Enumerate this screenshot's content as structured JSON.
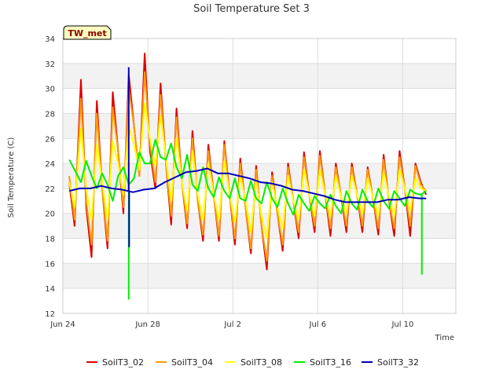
{
  "chart_data": {
    "type": "line",
    "title": "Soil Temperature Set 3",
    "xlabel": "Time",
    "ylabel": "Soil Temperature (C)",
    "badge": "TW_met",
    "ylim": [
      12,
      34
    ],
    "yticks": [
      12,
      14,
      16,
      18,
      20,
      22,
      24,
      26,
      28,
      30,
      32,
      34
    ],
    "xlim": [
      0,
      18.5
    ],
    "xticks": [
      {
        "value": 0,
        "label": "Jun 24"
      },
      {
        "value": 4,
        "label": "Jun 28"
      },
      {
        "value": 8,
        "label": "Jul 2"
      },
      {
        "value": 12,
        "label": "Jul 6"
      },
      {
        "value": 16,
        "label": "Jul 10"
      }
    ],
    "grid": true,
    "legend_position": "bottom",
    "x_unit": "days since Jun 24",
    "series": [
      {
        "name": "SoilT3_02",
        "color": "#dd0000",
        "x": [
          0.3,
          0.55,
          0.85,
          1.1,
          1.35,
          1.6,
          1.85,
          2.1,
          2.35,
          2.6,
          2.85,
          3.1,
          3.35,
          3.6,
          3.85,
          4.1,
          4.35,
          4.6,
          4.85,
          5.1,
          5.35,
          5.6,
          5.85,
          6.1,
          6.35,
          6.6,
          6.85,
          7.1,
          7.35,
          7.6,
          7.85,
          8.1,
          8.35,
          8.6,
          8.85,
          9.1,
          9.35,
          9.6,
          9.85,
          10.1,
          10.35,
          10.6,
          10.85,
          11.1,
          11.35,
          11.6,
          11.85,
          12.1,
          12.35,
          12.6,
          12.85,
          13.1,
          13.35,
          13.6,
          13.85,
          14.1,
          14.35,
          14.6,
          14.85,
          15.1,
          15.35,
          15.6,
          15.85,
          16.1,
          16.35,
          16.6,
          16.85,
          17.1
        ],
        "y": [
          22.5,
          19.0,
          30.7,
          20.5,
          16.5,
          29.0,
          22.0,
          17.2,
          29.7,
          25.0,
          20.0,
          31.1,
          27.0,
          23.0,
          32.8,
          25.0,
          22.0,
          30.4,
          24.0,
          19.1,
          28.4,
          22.5,
          18.8,
          26.6,
          21.0,
          17.8,
          25.5,
          21.5,
          17.8,
          25.8,
          21.5,
          17.5,
          24.4,
          20.5,
          16.8,
          23.8,
          19.0,
          15.5,
          23.3,
          20.0,
          17.0,
          24.0,
          21.0,
          18.0,
          24.9,
          21.5,
          18.5,
          25.0,
          21.5,
          18.2,
          24.0,
          21.3,
          18.5,
          24.0,
          21.5,
          18.5,
          23.7,
          21.2,
          18.3,
          24.7,
          21.0,
          18.2,
          25.0,
          22.0,
          18.2,
          24.0,
          22.5,
          21.5
        ],
        "spikes": []
      },
      {
        "name": "SoilT3_04",
        "color": "#ff9900",
        "x": [
          0.3,
          0.55,
          0.85,
          1.1,
          1.35,
          1.6,
          1.85,
          2.1,
          2.35,
          2.6,
          2.85,
          3.1,
          3.35,
          3.6,
          3.85,
          4.1,
          4.35,
          4.6,
          4.85,
          5.1,
          5.35,
          5.6,
          5.85,
          6.1,
          6.35,
          6.6,
          6.85,
          7.1,
          7.35,
          7.6,
          7.85,
          8.1,
          8.35,
          8.6,
          8.85,
          9.1,
          9.35,
          9.6,
          9.85,
          10.1,
          10.35,
          10.6,
          10.85,
          11.1,
          11.35,
          11.6,
          11.85,
          12.1,
          12.35,
          12.6,
          12.85,
          13.1,
          13.35,
          13.6,
          13.85,
          14.1,
          14.35,
          14.6,
          14.85,
          15.1,
          15.35,
          15.6,
          15.85,
          16.1,
          16.35,
          16.6,
          16.85,
          17.1
        ],
        "y": [
          23.0,
          19.5,
          29.2,
          21.0,
          17.5,
          28.0,
          22.0,
          17.8,
          28.5,
          25.0,
          20.5,
          30.0,
          27.0,
          23.0,
          31.3,
          25.5,
          22.5,
          29.5,
          24.0,
          19.8,
          27.7,
          22.5,
          19.2,
          26.0,
          21.0,
          18.3,
          25.0,
          21.5,
          18.2,
          25.5,
          21.5,
          18.0,
          24.0,
          20.5,
          17.2,
          23.5,
          19.0,
          16.2,
          23.0,
          20.0,
          17.5,
          23.7,
          21.0,
          18.5,
          24.5,
          21.5,
          19.0,
          24.6,
          21.5,
          18.8,
          23.7,
          21.3,
          19.0,
          23.7,
          21.5,
          19.0,
          23.5,
          21.2,
          18.8,
          24.3,
          21.0,
          18.8,
          24.5,
          22.0,
          19.0,
          23.8,
          22.3,
          21.8
        ],
        "spikes": []
      },
      {
        "name": "SoilT3_08",
        "color": "#ffff00",
        "x": [
          0.3,
          0.55,
          0.85,
          1.1,
          1.35,
          1.6,
          1.85,
          2.1,
          2.35,
          2.6,
          2.85,
          3.1,
          3.35,
          3.6,
          3.85,
          4.1,
          4.35,
          4.6,
          4.85,
          5.1,
          5.35,
          5.6,
          5.85,
          6.1,
          6.35,
          6.6,
          6.85,
          7.1,
          7.35,
          7.6,
          7.85,
          8.1,
          8.35,
          8.6,
          8.85,
          9.1,
          9.35,
          9.6,
          9.85,
          10.1,
          10.35,
          10.6,
          10.85,
          11.1,
          11.35,
          11.6,
          11.85,
          12.1,
          12.35,
          12.6,
          12.85,
          13.1,
          13.35,
          13.6,
          13.85,
          14.1,
          14.35,
          14.6,
          14.85,
          15.1,
          15.35,
          15.6,
          15.85,
          16.1,
          16.35,
          16.6,
          16.85,
          17.1
        ],
        "y": [
          22.5,
          20.5,
          26.8,
          22.0,
          19.5,
          25.5,
          22.5,
          19.5,
          25.8,
          24.0,
          21.5,
          27.0,
          25.5,
          23.5,
          28.8,
          26.0,
          23.8,
          27.8,
          24.5,
          21.0,
          26.0,
          22.5,
          20.2,
          25.0,
          21.5,
          19.5,
          24.0,
          21.5,
          19.5,
          24.2,
          21.5,
          19.3,
          23.0,
          21.0,
          18.5,
          22.7,
          19.8,
          18.0,
          22.5,
          20.5,
          18.8,
          23.0,
          21.0,
          19.5,
          23.5,
          21.5,
          19.8,
          23.5,
          21.5,
          19.8,
          23.0,
          21.3,
          20.0,
          23.0,
          21.5,
          20.0,
          22.8,
          21.3,
          19.8,
          23.3,
          21.3,
          19.8,
          23.5,
          22.0,
          20.2,
          22.8,
          22.0,
          21.8
        ],
        "spikes": []
      },
      {
        "name": "SoilT3_16",
        "color": "#00ee00",
        "x": [
          0.3,
          0.55,
          0.85,
          1.1,
          1.35,
          1.6,
          1.85,
          2.1,
          2.35,
          2.6,
          2.85,
          3.1,
          3.35,
          3.6,
          3.85,
          4.1,
          4.35,
          4.6,
          4.85,
          5.1,
          5.35,
          5.6,
          5.85,
          6.1,
          6.35,
          6.6,
          6.85,
          7.1,
          7.35,
          7.6,
          7.85,
          8.1,
          8.35,
          8.6,
          8.85,
          9.1,
          9.35,
          9.6,
          9.85,
          10.1,
          10.35,
          10.6,
          10.85,
          11.1,
          11.35,
          11.6,
          11.85,
          12.1,
          12.35,
          12.6,
          12.85,
          13.1,
          13.35,
          13.6,
          13.85,
          14.1,
          14.35,
          14.6,
          14.85,
          15.1,
          15.35,
          15.6,
          15.85,
          16.1,
          16.35,
          16.6,
          16.85,
          17.1
        ],
        "y": [
          24.3,
          23.5,
          22.5,
          24.2,
          23.0,
          22.0,
          23.2,
          22.3,
          21.0,
          23.0,
          23.7,
          22.3,
          22.8,
          24.9,
          24.0,
          24.0,
          25.9,
          24.5,
          24.3,
          25.6,
          23.7,
          22.8,
          24.7,
          22.3,
          21.8,
          23.7,
          22.0,
          21.3,
          22.9,
          21.8,
          21.2,
          22.8,
          21.2,
          21.0,
          22.6,
          21.2,
          20.8,
          22.5,
          21.2,
          20.5,
          22.0,
          20.8,
          19.9,
          21.5,
          20.8,
          20.2,
          21.4,
          20.8,
          20.4,
          21.5,
          20.6,
          20.0,
          21.8,
          20.8,
          20.3,
          21.9,
          21.0,
          20.5,
          22.0,
          21.0,
          20.4,
          21.8,
          21.2,
          20.6,
          21.9,
          21.6,
          21.5,
          21.8
        ],
        "spikes": [
          {
            "x": 3.1,
            "y_from": 22.3,
            "y_to": 13.1
          },
          {
            "x": 16.9,
            "y_from": 21.5,
            "y_to": 15.1
          }
        ]
      },
      {
        "name": "SoilT3_32",
        "color": "#0000bb",
        "x": [
          0.3,
          0.8,
          1.3,
          1.8,
          2.3,
          2.8,
          3.3,
          3.8,
          4.3,
          4.8,
          5.3,
          5.8,
          6.3,
          6.8,
          7.3,
          7.8,
          8.3,
          8.8,
          9.3,
          9.8,
          10.3,
          10.8,
          11.3,
          11.8,
          12.3,
          12.8,
          13.3,
          13.8,
          14.3,
          14.8,
          15.3,
          15.8,
          16.3,
          16.8,
          17.1
        ],
        "y": [
          21.8,
          22.0,
          22.0,
          22.2,
          22.0,
          21.9,
          21.7,
          21.9,
          22.0,
          22.5,
          22.9,
          23.3,
          23.4,
          23.6,
          23.2,
          23.2,
          23.0,
          22.8,
          22.5,
          22.4,
          22.2,
          21.9,
          21.8,
          21.6,
          21.4,
          21.1,
          20.9,
          20.9,
          20.9,
          20.9,
          21.1,
          21.1,
          21.3,
          21.2,
          21.2
        ],
        "spikes": [
          {
            "x": 3.1,
            "y_from": 21.8,
            "y_to": 31.7
          },
          {
            "x": 3.12,
            "y_from": 21.8,
            "y_to": 17.3
          }
        ]
      }
    ]
  }
}
